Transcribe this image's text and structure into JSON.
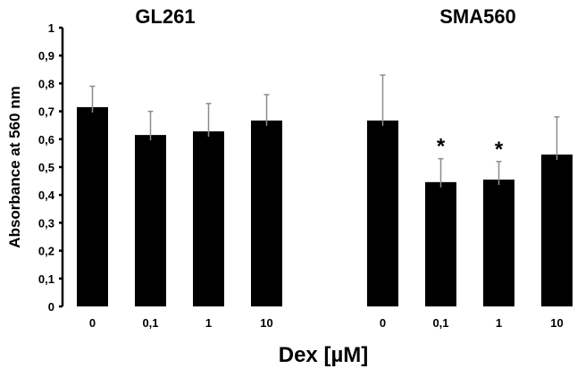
{
  "chart_data": {
    "type": "bar",
    "title": "",
    "group_titles": [
      "GL261",
      "SMA560"
    ],
    "categories": [
      "0",
      "0,1",
      "1",
      "10"
    ],
    "xlabel": "Dex [µM]",
    "ylabel": "Absorbance at 560 nm",
    "ylim": [
      0,
      1
    ],
    "yticks": [
      "0",
      "0,1",
      "0,2",
      "0,3",
      "0,4",
      "0,5",
      "0,6",
      "0,7",
      "0,8",
      "0,9",
      "1"
    ],
    "grid": false,
    "series": [
      {
        "name": "GL261",
        "values": [
          0.715,
          0.615,
          0.628,
          0.667
        ],
        "errors": [
          0.075,
          0.085,
          0.1,
          0.093
        ],
        "significance": [
          "",
          "",
          "",
          ""
        ]
      },
      {
        "name": "SMA560",
        "values": [
          0.667,
          0.446,
          0.455,
          0.545
        ],
        "errors": [
          0.163,
          0.084,
          0.065,
          0.135
        ],
        "significance": [
          "",
          "*",
          "*",
          ""
        ]
      }
    ],
    "colors": {
      "bar": "#000000",
      "error_bar": "#8c8c8c",
      "axis": "#000000"
    }
  }
}
